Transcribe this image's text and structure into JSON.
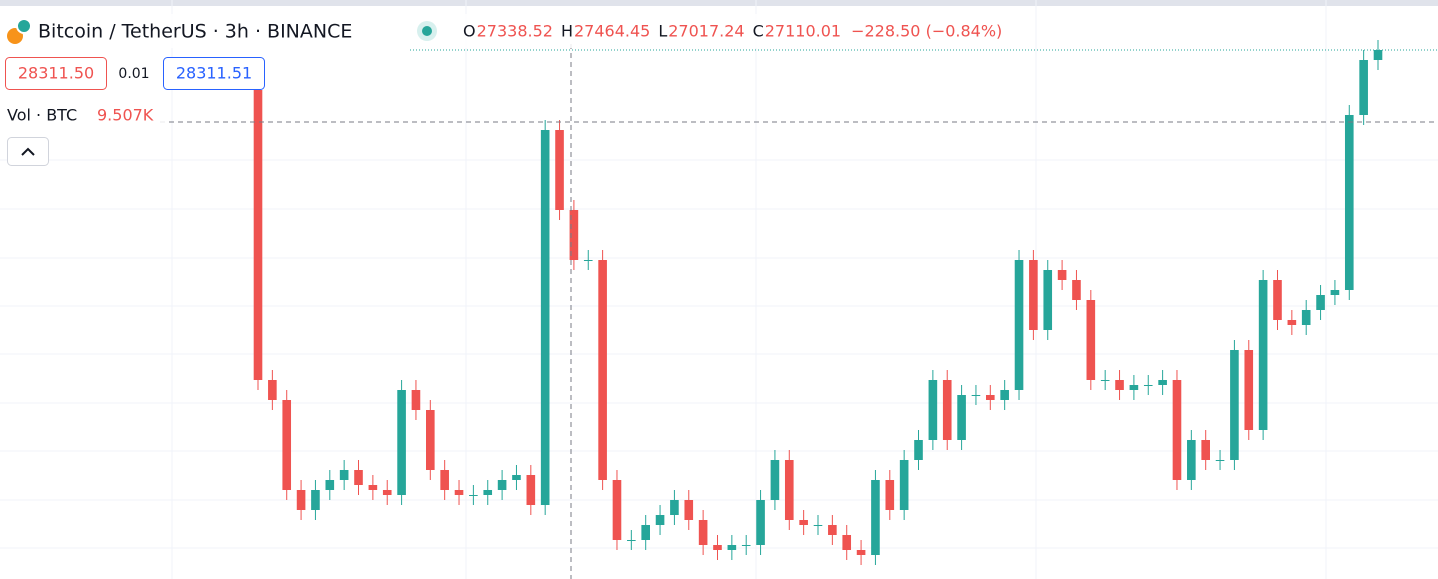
{
  "header": {
    "symbol": "Bitcoin / TetherUS · 3h · BINANCE",
    "ohlc": [
      {
        "label": "O",
        "value": "27338.52"
      },
      {
        "label": "H",
        "value": "27464.45"
      },
      {
        "label": "L",
        "value": "27017.24"
      },
      {
        "label": "C",
        "value": "27110.01"
      }
    ],
    "change": "−228.50 (−0.84%)",
    "sell_price": "28311.50",
    "spread": "0.01",
    "buy_price": "28311.51",
    "volume_label": "Vol · BTC",
    "volume_value": "9.507K"
  },
  "chart_data": {
    "type": "candlestick",
    "up_color": "#26a69a",
    "down_color": "#ef5350",
    "ylim": [
      25138,
      28612
    ],
    "candles": [
      [
        28072,
        28132,
        26272,
        26332
      ],
      [
        26332,
        26392,
        26152,
        26212
      ],
      [
        26212,
        26272,
        25612,
        25672
      ],
      [
        25672,
        25732,
        25492,
        25552
      ],
      [
        25552,
        25732,
        25492,
        25672
      ],
      [
        25672,
        25792,
        25612,
        25732
      ],
      [
        25732,
        25852,
        25672,
        25792
      ],
      [
        25792,
        25852,
        25642,
        25702
      ],
      [
        25702,
        25762,
        25612,
        25672
      ],
      [
        25672,
        25732,
        25582,
        25642
      ],
      [
        25642,
        26332,
        25582,
        26272
      ],
      [
        26272,
        26332,
        26092,
        26152
      ],
      [
        26152,
        26212,
        25732,
        25792
      ],
      [
        25792,
        25852,
        25612,
        25672
      ],
      [
        25672,
        25732,
        25582,
        25642
      ],
      [
        25642,
        25702,
        25582,
        25642
      ],
      [
        25642,
        25732,
        25582,
        25672
      ],
      [
        25672,
        25792,
        25612,
        25732
      ],
      [
        25732,
        25822,
        25672,
        25762
      ],
      [
        25762,
        25822,
        25522,
        25582
      ],
      [
        25582,
        27892,
        25522,
        27832
      ],
      [
        27832,
        27892,
        27292,
        27352
      ],
      [
        27352,
        27412,
        26992,
        27052
      ],
      [
        27052,
        27112,
        26992,
        27052
      ],
      [
        27052,
        27112,
        25672,
        25732
      ],
      [
        25732,
        25792,
        25312,
        25372
      ],
      [
        25372,
        25432,
        25312,
        25372
      ],
      [
        25372,
        25522,
        25312,
        25462
      ],
      [
        25462,
        25582,
        25402,
        25522
      ],
      [
        25522,
        25672,
        25462,
        25612
      ],
      [
        25612,
        25672,
        25432,
        25492
      ],
      [
        25492,
        25552,
        25282,
        25342
      ],
      [
        25342,
        25402,
        25252,
        25312
      ],
      [
        25312,
        25402,
        25252,
        25342
      ],
      [
        25342,
        25402,
        25282,
        25342
      ],
      [
        25342,
        25672,
        25282,
        25612
      ],
      [
        25612,
        25912,
        25552,
        25852
      ],
      [
        25852,
        25912,
        25432,
        25492
      ],
      [
        25492,
        25552,
        25402,
        25462
      ],
      [
        25462,
        25522,
        25402,
        25462
      ],
      [
        25462,
        25522,
        25342,
        25402
      ],
      [
        25402,
        25462,
        25252,
        25312
      ],
      [
        25312,
        25372,
        25222,
        25282
      ],
      [
        25282,
        25792,
        25222,
        25732
      ],
      [
        25732,
        25792,
        25492,
        25552
      ],
      [
        25552,
        25912,
        25492,
        25852
      ],
      [
        25852,
        26032,
        25792,
        25972
      ],
      [
        25972,
        26392,
        25912,
        26332
      ],
      [
        26332,
        26392,
        25912,
        25972
      ],
      [
        25972,
        26302,
        25912,
        26242
      ],
      [
        26242,
        26302,
        26182,
        26242
      ],
      [
        26242,
        26302,
        26152,
        26212
      ],
      [
        26212,
        26332,
        26152,
        26272
      ],
      [
        26272,
        27112,
        26212,
        27052
      ],
      [
        27052,
        27112,
        26572,
        26632
      ],
      [
        26632,
        27052,
        26572,
        26992
      ],
      [
        26992,
        27052,
        26872,
        26932
      ],
      [
        26932,
        26992,
        26752,
        26812
      ],
      [
        26812,
        26872,
        26272,
        26332
      ],
      [
        26332,
        26392,
        26272,
        26332
      ],
      [
        26332,
        26392,
        26212,
        26272
      ],
      [
        26272,
        26362,
        26212,
        26302
      ],
      [
        26302,
        26362,
        26242,
        26302
      ],
      [
        26302,
        26392,
        26242,
        26332
      ],
      [
        26332,
        26392,
        25672,
        25732
      ],
      [
        25732,
        26032,
        25672,
        25972
      ],
      [
        25972,
        26032,
        25792,
        25852
      ],
      [
        25852,
        25912,
        25792,
        25852
      ],
      [
        25852,
        26572,
        25792,
        26512
      ],
      [
        26512,
        26572,
        25972,
        26032
      ],
      [
        26032,
        26992,
        25972,
        26932
      ],
      [
        26932,
        26992,
        26632,
        26692
      ],
      [
        26692,
        26752,
        26602,
        26662
      ],
      [
        26662,
        26812,
        26602,
        26752
      ],
      [
        26752,
        26902,
        26692,
        26842
      ],
      [
        26842,
        26932,
        26782,
        26872
      ],
      [
        26872,
        27982,
        26812,
        27922
      ],
      [
        27922,
        28312,
        27862,
        28252
      ],
      [
        28252,
        28372,
        28192,
        28312
      ]
    ]
  }
}
